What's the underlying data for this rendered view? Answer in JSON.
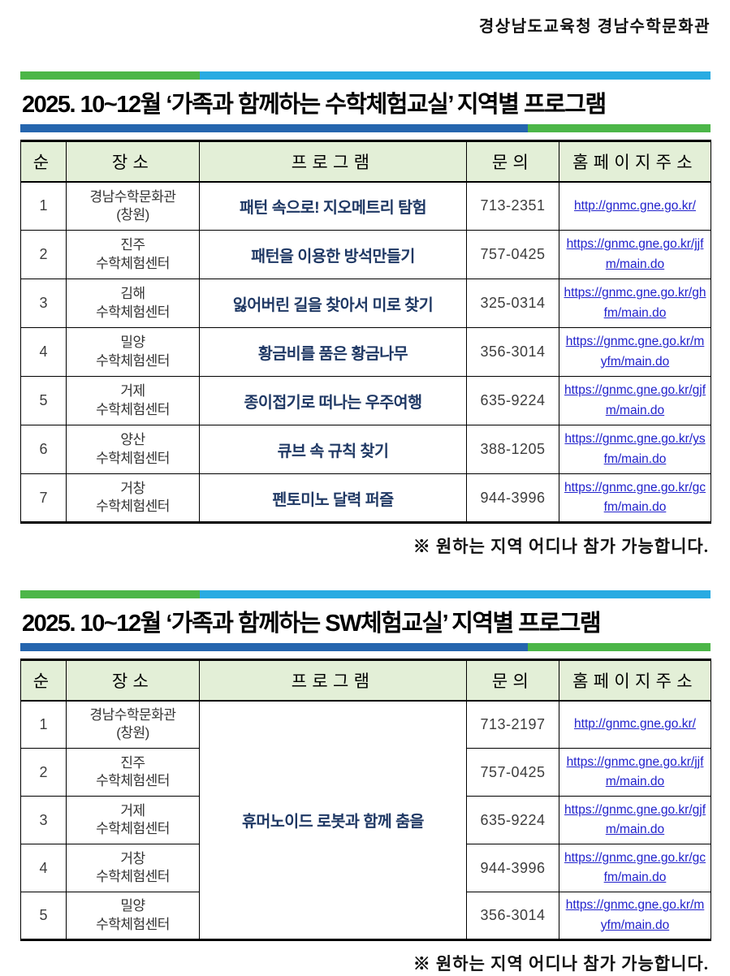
{
  "page": {
    "doc_header": "경상남도교육청 경남수학문화관",
    "colors": {
      "stripe_green": "#4cb648",
      "stripe_sky_blue": "#29abe2",
      "stripe_dark_blue": "#2565ae",
      "table_header_bg": "#e3efd7",
      "program_text": "#1f3864",
      "link_blue": "#2121cc"
    }
  },
  "section1": {
    "title": "2025. 10~12월 ‘가족과 함께하는 수학체험교실’ 지역별 프로그램",
    "columns": [
      "순",
      "장소",
      "프로그램",
      "문의",
      "홈페이지주소"
    ],
    "rows": [
      {
        "no": "1",
        "place1": "경남수학문화관",
        "place2": "(창원)",
        "program": "패턴 속으로! 지오메트리 탐험",
        "phone": "713-2351",
        "url": "http://gnmc.gne.go.kr/"
      },
      {
        "no": "2",
        "place1": "진주",
        "place2": "수학체험센터",
        "program": "패턴을 이용한 방석만들기",
        "phone": "757-0425",
        "url": "https://gnmc.gne.go.kr/jjfm/main.do"
      },
      {
        "no": "3",
        "place1": "김해",
        "place2": "수학체험센터",
        "program": "잃어버린 길을 찾아서 미로 찾기",
        "phone": "325-0314",
        "url": "https://gnmc.gne.go.kr/ghfm/main.do"
      },
      {
        "no": "4",
        "place1": "밀양",
        "place2": "수학체험센터",
        "program": "황금비를 품은 황금나무",
        "phone": "356-3014",
        "url": "https://gnmc.gne.go.kr/myfm/main.do"
      },
      {
        "no": "5",
        "place1": "거제",
        "place2": "수학체험센터",
        "program": "종이접기로 떠나는 우주여행",
        "phone": "635-9224",
        "url": "https://gnmc.gne.go.kr/gjfm/main.do"
      },
      {
        "no": "6",
        "place1": "양산",
        "place2": "수학체험센터",
        "program": "큐브 속 규칙 찾기",
        "phone": "388-1205",
        "url": "https://gnmc.gne.go.kr/ysfm/main.do"
      },
      {
        "no": "7",
        "place1": "거창",
        "place2": "수학체험센터",
        "program": "펜토미노 달력 퍼즐",
        "phone": "944-3996",
        "url": "https://gnmc.gne.go.kr/gcfm/main.do"
      }
    ],
    "note": "※ 원하는 지역 어디나 참가 가능합니다."
  },
  "section2": {
    "title": "2025. 10~12월 ‘가족과 함께하는 SW체험교실’ 지역별 프로그램",
    "columns": [
      "순",
      "장소",
      "프로그램",
      "문의",
      "홈페이지주소"
    ],
    "program_merged": "휴머노이드 로봇과 함께 춤을",
    "rows": [
      {
        "no": "1",
        "place1": "경남수학문화관",
        "place2": "(창원)",
        "phone": "713-2197",
        "url": "http://gnmc.gne.go.kr/"
      },
      {
        "no": "2",
        "place1": "진주",
        "place2": "수학체험센터",
        "phone": "757-0425",
        "url": "https://gnmc.gne.go.kr/jjfm/main.do"
      },
      {
        "no": "3",
        "place1": "거제",
        "place2": "수학체험센터",
        "phone": "635-9224",
        "url": "https://gnmc.gne.go.kr/gjfm/main.do"
      },
      {
        "no": "4",
        "place1": "거창",
        "place2": "수학체험센터",
        "phone": "944-3996",
        "url": "https://gnmc.gne.go.kr/gcfm/main.do"
      },
      {
        "no": "5",
        "place1": "밀양",
        "place2": "수학체험센터",
        "phone": "356-3014",
        "url": "https://gnmc.gne.go.kr/myfm/main.do"
      }
    ],
    "note": "※ 원하는 지역 어디나 참가 가능합니다."
  }
}
